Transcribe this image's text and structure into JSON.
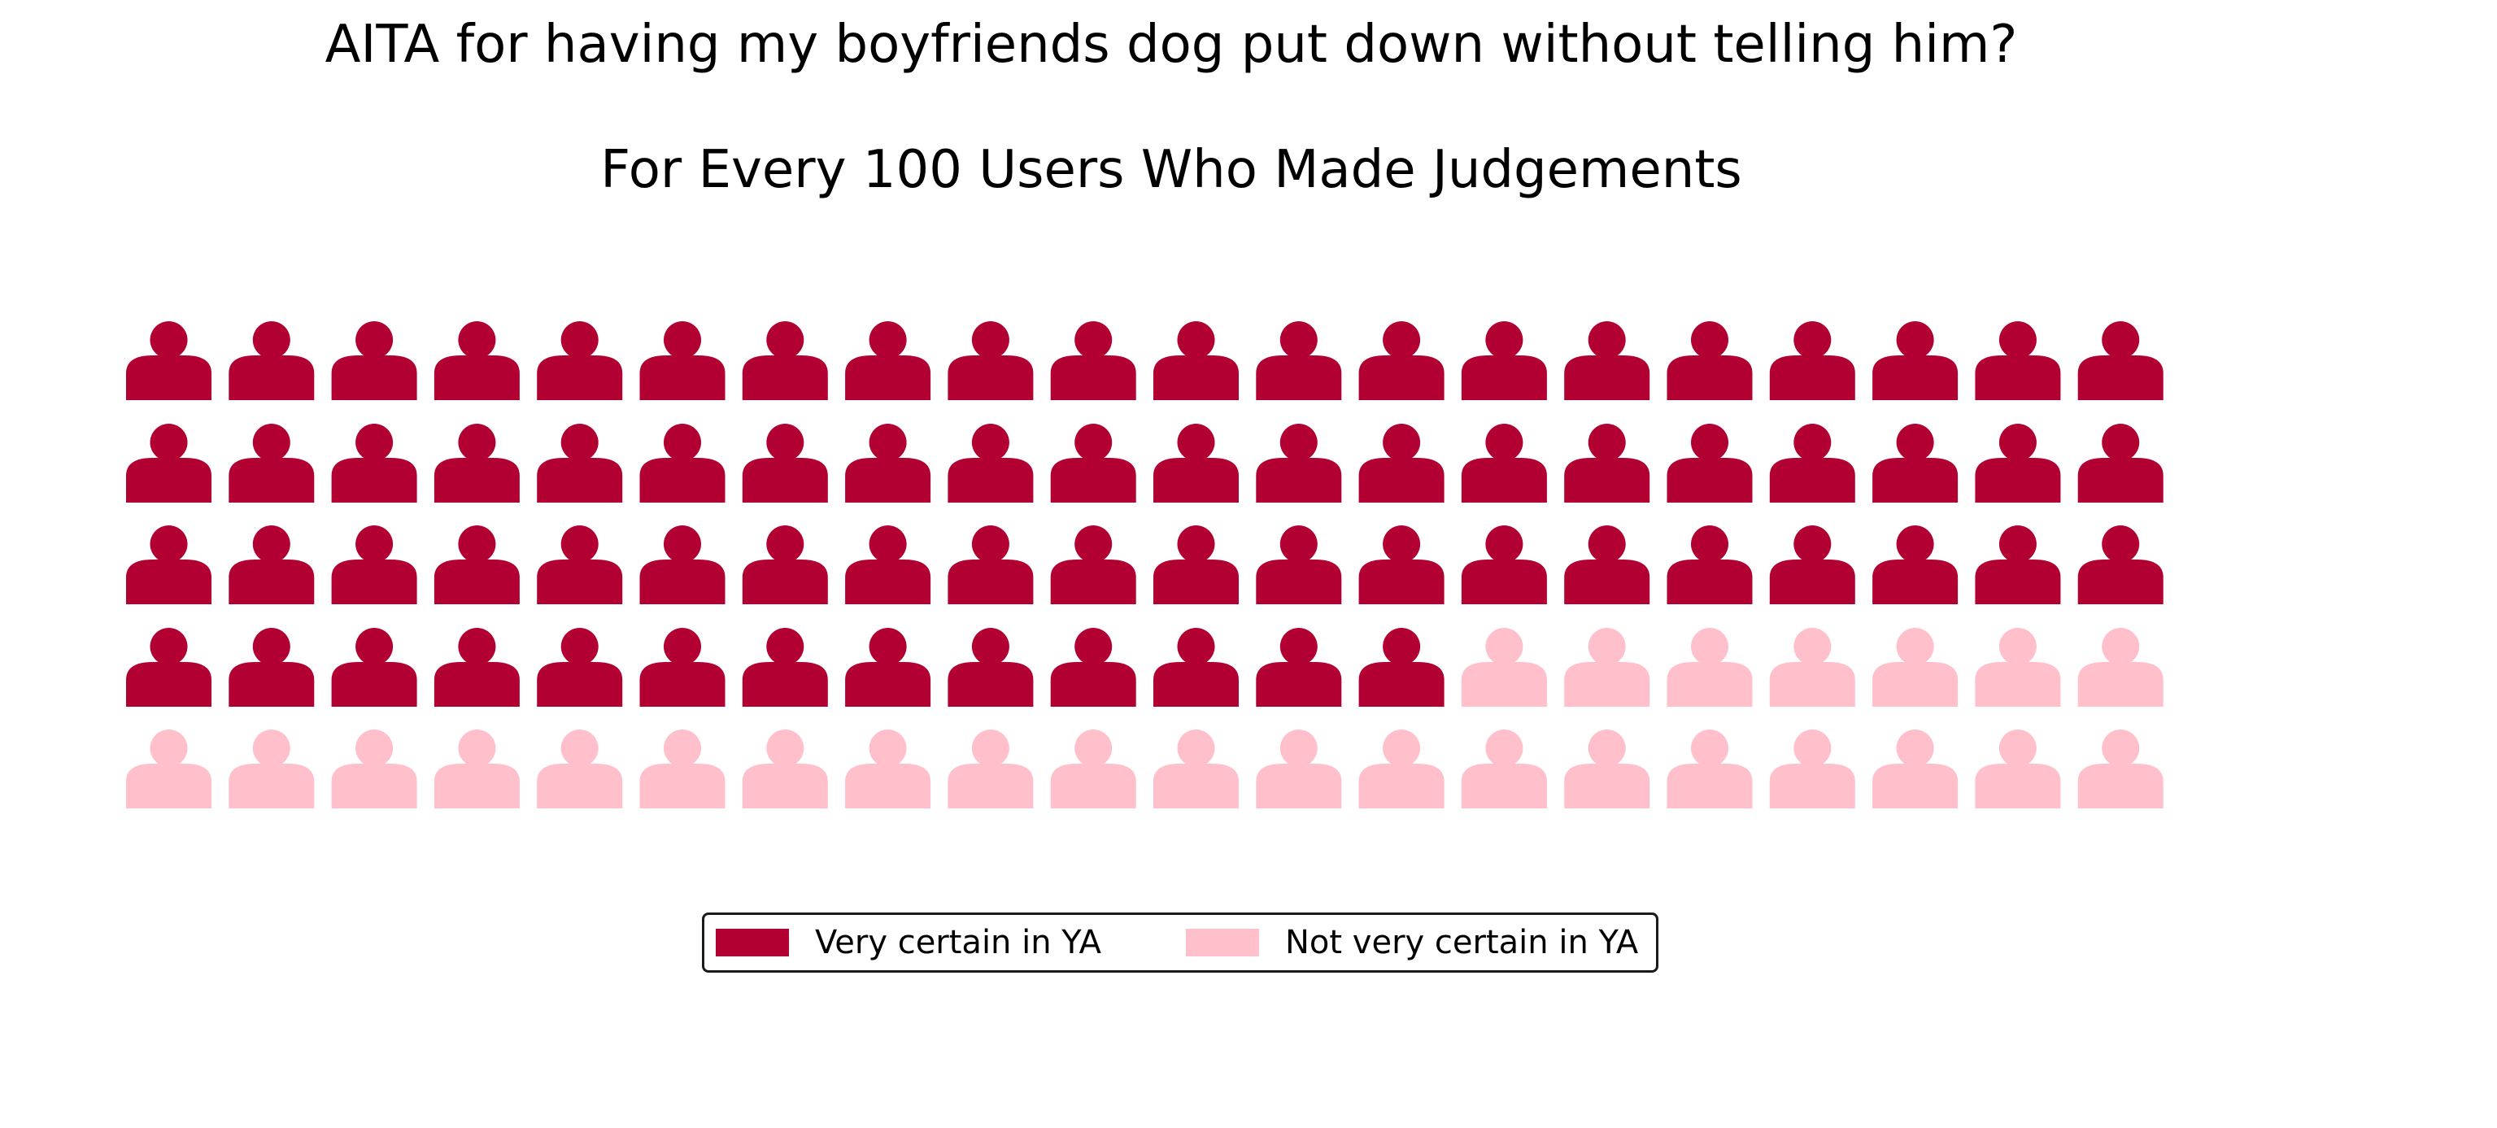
{
  "chart_data": {
    "type": "waffle",
    "title": "AITA for having my boyfriends dog put down without telling him?",
    "subtitle": "For Every 100 Users Who Made Judgements",
    "icon": "person-icon",
    "rows": 5,
    "columns": 20,
    "series": [
      {
        "name": "Very certain in YA",
        "value": 73,
        "color": "#b30033"
      },
      {
        "name": "Not very certain in YA",
        "value": 27,
        "color": "#ffc0cb"
      }
    ],
    "legend_position": "bottom-center"
  }
}
